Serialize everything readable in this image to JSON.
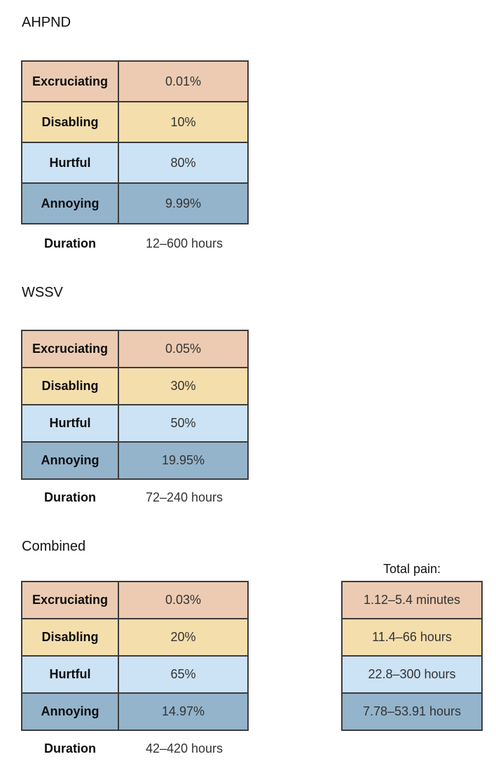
{
  "sections": [
    {
      "title": "AHPND",
      "rows": [
        {
          "label": "Excruciating",
          "value": "0.01%"
        },
        {
          "label": "Disabling",
          "value": "10%"
        },
        {
          "label": "Hurtful",
          "value": "80%"
        },
        {
          "label": "Annoying",
          "value": "9.99%"
        }
      ],
      "duration_label": "Duration",
      "duration_value": "12–600 hours"
    },
    {
      "title": "WSSV",
      "rows": [
        {
          "label": "Excruciating",
          "value": "0.05%"
        },
        {
          "label": "Disabling",
          "value": "30%"
        },
        {
          "label": "Hurtful",
          "value": "50%"
        },
        {
          "label": "Annoying",
          "value": "19.95%"
        }
      ],
      "duration_label": "Duration",
      "duration_value": "72–240 hours"
    },
    {
      "title": "Combined",
      "rows": [
        {
          "label": "Excruciating",
          "value": "0.03%"
        },
        {
          "label": "Disabling",
          "value": "20%"
        },
        {
          "label": "Hurtful",
          "value": "65%"
        },
        {
          "label": "Annoying",
          "value": "14.97%"
        }
      ],
      "duration_label": "Duration",
      "duration_value": "42–420 hours"
    }
  ],
  "total_pain": {
    "caption": "Total pain:",
    "values": [
      "1.12–5.4 minutes",
      "11.4–66 hours",
      "22.8–300 hours",
      "7.78–53.91 hours"
    ]
  },
  "colors": {
    "excruciating": "#eccbb2",
    "disabling": "#f4deac",
    "hurtful": "#cce3f5",
    "annoying": "#94b4cc"
  }
}
